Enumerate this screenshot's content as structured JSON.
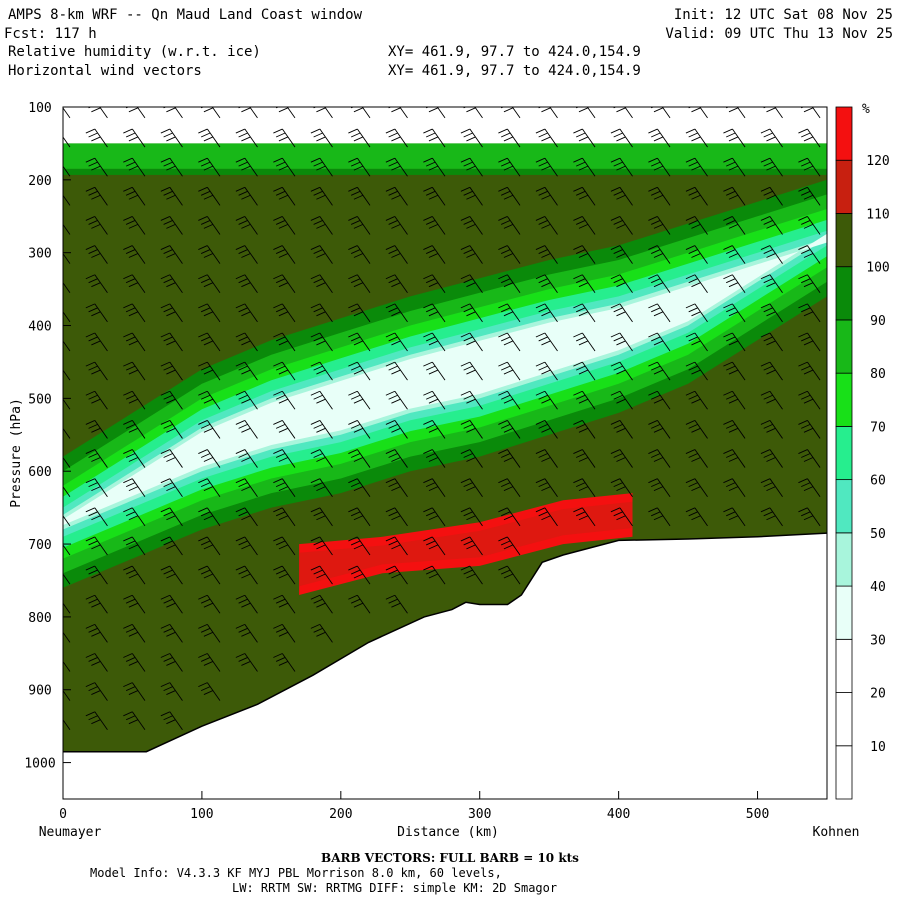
{
  "header": {
    "title": "AMPS 8-km WRF -- Qn Maud Land Coast window",
    "init": "Init: 12 UTC Sat 08 Nov 25",
    "fcst": "Fcst:  117 h",
    "valid": "Valid: 09 UTC Thu 13 Nov 25",
    "field1": "Relative humidity (w.r.t. ice)",
    "field2": "Horizontal wind vectors",
    "xy1": "XY= 461.9, 97.7 to 424.0,154.9",
    "xy2": "XY= 461.9, 97.7 to 424.0,154.9"
  },
  "footer": {
    "barb": "BARB VECTORS:  FULL BARB = 10 kts",
    "model": "Model Info: V4.3.3   KF     MYJ PBL  Morrison           8.0 km,  60 levels,",
    "physics": "LW: RRTM SW: RRTMG   DIFF: simple KM: 2D Smagor"
  },
  "chart_data": {
    "type": "heatmap",
    "title": "Relative humidity (w.r.t. ice)",
    "xlabel": "Distance (km)",
    "ylabel": "Pressure (hPa)",
    "x_left_label": "Neumayer",
    "x_right_label": "Kohnen",
    "xlim": [
      0,
      550
    ],
    "ylim": [
      1050,
      100
    ],
    "x_ticks": [
      0,
      100,
      200,
      300,
      400,
      500
    ],
    "y_ticks": [
      100,
      200,
      300,
      400,
      500,
      600,
      700,
      800,
      900,
      1000
    ],
    "colorbar": {
      "unit": "%",
      "levels": [
        10,
        20,
        30,
        40,
        50,
        60,
        70,
        80,
        90,
        100,
        110,
        120
      ],
      "colors": [
        "#ffffff",
        "#ffffff",
        "#ffffff",
        "#e8fff8",
        "#a8f5dc",
        "#50e8c0",
        "#26ee8e",
        "#18e018",
        "#18b818",
        "#0a8a0a",
        "#3d5a08",
        "#c82010",
        "#f41010"
      ]
    },
    "terrain_profile": {
      "x": [
        0,
        60,
        100,
        140,
        180,
        220,
        260,
        280,
        290,
        300,
        310,
        320,
        330,
        345,
        360,
        400,
        450,
        500,
        550
      ],
      "p": [
        985,
        985,
        950,
        920,
        880,
        835,
        800,
        790,
        780,
        783,
        783,
        783,
        770,
        725,
        715,
        695,
        693,
        690,
        685
      ]
    },
    "moist_band": {
      "x": [
        0,
        50,
        100,
        150,
        200,
        250,
        300,
        350,
        400,
        450,
        500,
        550
      ],
      "p_top": [
        620,
        560,
        500,
        460,
        430,
        400,
        375,
        350,
        330,
        300,
        270,
        240
      ],
      "p_bottom": [
        720,
        680,
        640,
        610,
        590,
        560,
        540,
        510,
        480,
        440,
        380,
        320
      ]
    },
    "supersat_band": {
      "x": [
        170,
        230,
        300,
        360,
        410
      ],
      "p_top": [
        700,
        690,
        670,
        640,
        630
      ],
      "p_bottom": [
        770,
        740,
        730,
        700,
        690
      ]
    },
    "barbs_note": "FULL BARB = 10 kts"
  }
}
